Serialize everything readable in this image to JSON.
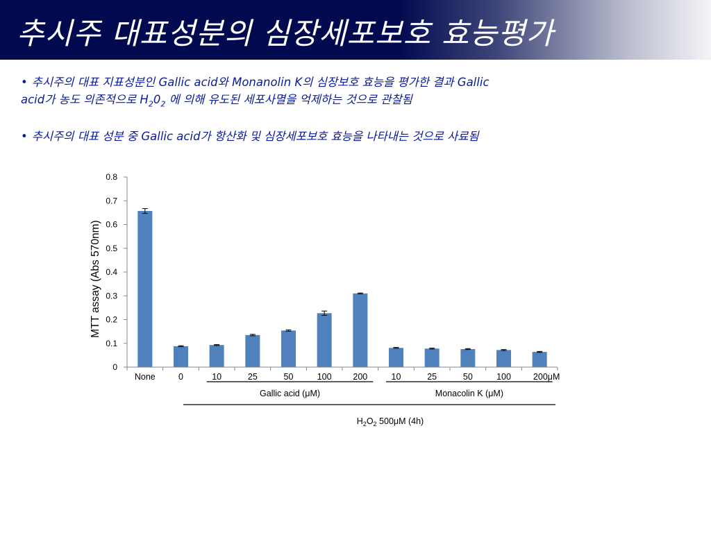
{
  "title": "추시주 대표성분의 심장세포보호 효능평가",
  "bullets": [
    {
      "line1": "추시주의 대표 지표성분인 Gallic acid와 Monanolin K의 심장보호 효능을 평가한 결과 Gallic",
      "line2_a": "acid가 농도 의존적으로 H",
      "line2_sub1": "2",
      "line2_b": "0",
      "line2_sub2": "2",
      "line2_c": " 에 의해 유도된 세포사멸을 억제하는 것으로 관찰됨"
    },
    {
      "line1": "추시주의 대표 성분 중 Gallic acid가 항산화 및 심장세포보호 효능을 나타내는 것으로 사료됨"
    }
  ],
  "chart_data": {
    "type": "bar",
    "ylabel": "MTT assay (Abs 570nm)",
    "ylim": [
      0,
      0.8
    ],
    "yticks": [
      "0",
      "0.1",
      "0.2",
      "0.3",
      "0.4",
      "0.5",
      "0.6",
      "0.7",
      "0.8"
    ],
    "categories": [
      "None",
      "0",
      "10",
      "25",
      "50",
      "100",
      "200",
      "10",
      "25",
      "50",
      "100",
      "200μM"
    ],
    "values": [
      0.657,
      0.088,
      0.093,
      0.135,
      0.154,
      0.227,
      0.31,
      0.081,
      0.078,
      0.076,
      0.072,
      0.064
    ],
    "errors": [
      0.01,
      0.002,
      0.002,
      0.003,
      0.003,
      0.009,
      0.002,
      0.002,
      0.002,
      0.002,
      0.002,
      0.002
    ],
    "bar_color": "#4f81bd",
    "groups": [
      {
        "label": "Gallic acid (μM)",
        "from": 2,
        "to": 6
      },
      {
        "label": "Monacolin K (μM)",
        "from": 7,
        "to": 11
      }
    ],
    "treatment": {
      "pre": "H",
      "sub1": "2",
      "mid": "O",
      "sub2": "2",
      "post": " 500μM (4h)"
    }
  }
}
